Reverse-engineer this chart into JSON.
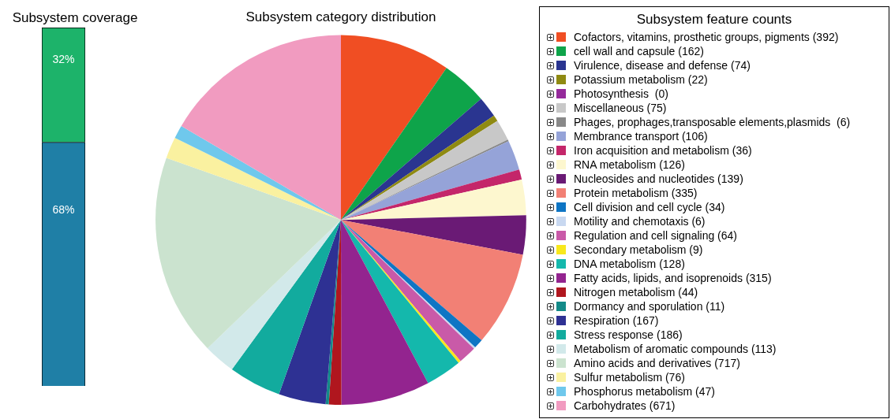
{
  "chart_data": [
    {
      "type": "bar",
      "title": "Subsystem coverage",
      "categories": [
        null
      ],
      "stacked": true,
      "tick_labels": false,
      "series": [
        {
          "color": "#1f7fa6",
          "values": [
            68
          ],
          "value_labels": [
            "68%"
          ]
        },
        {
          "color": "#1db36a",
          "values": [
            32
          ],
          "value_labels": [
            "32%"
          ]
        }
      ]
    },
    {
      "type": "pie",
      "title": "Subsystem category distribution",
      "legend_title": "Subsystem feature counts",
      "legend": "right",
      "categories": [
        "Cofactors, vitamins, prosthetic groups, pigments (392)",
        "cell wall and capsule (162)",
        "Virulence, disease and defense (74)",
        "Potassium metabolism (22)",
        "Photosynthesis  (0)",
        "Miscellaneous (75)",
        "Phages, prophages,transposable elements,plasmids  (6)",
        "Membrance transport (106)",
        "Iron acquisition and metabolism (36)",
        "RNA metabolism (126)",
        "Nucleosides and nucleotides (139)",
        "Protein metabolism (335)",
        "Cell division and cell cycle (34)",
        "Motility and chemotaxis (6)",
        "Regulation and cell signaling (64)",
        "Secondary metabolism (9)",
        "DNA metabolism (128)",
        "Fatty acids, lipids, and isoprenoids (315)",
        "Nitrogen metabolism (44)",
        "Dormancy and sporulation (11)",
        "Respiration (167)",
        "Stress response (186)",
        "Metabolism of aromatic compounds (113)",
        "Amino acids and derivatives (717)",
        "Sulfur metabolism (76)",
        "Phosphorus metabolism (47)",
        "Carbohydrates (671)"
      ],
      "values": [
        392,
        162,
        74,
        22,
        0,
        75,
        6,
        106,
        36,
        126,
        139,
        335,
        34,
        6,
        64,
        9,
        128,
        315,
        44,
        11,
        167,
        186,
        113,
        717,
        76,
        47,
        671
      ],
      "colors": [
        "#f04e23",
        "#0ea44a",
        "#2a3590",
        "#8f8a12",
        "#952a9b",
        "#c8c8c8",
        "#888888",
        "#95a3d8",
        "#c4266a",
        "#fdf7cf",
        "#6a1a75",
        "#f28075",
        "#0e75c4",
        "#c8d8f0",
        "#c95aa8",
        "#f8e81c",
        "#14b8ac",
        "#93248f",
        "#b0161e",
        "#138a88",
        "#2e3193",
        "#12ab9e",
        "#d2e9ea",
        "#cbe3cf",
        "#faf1a0",
        "#6fc8ec",
        "#f19bc0"
      ]
    }
  ]
}
